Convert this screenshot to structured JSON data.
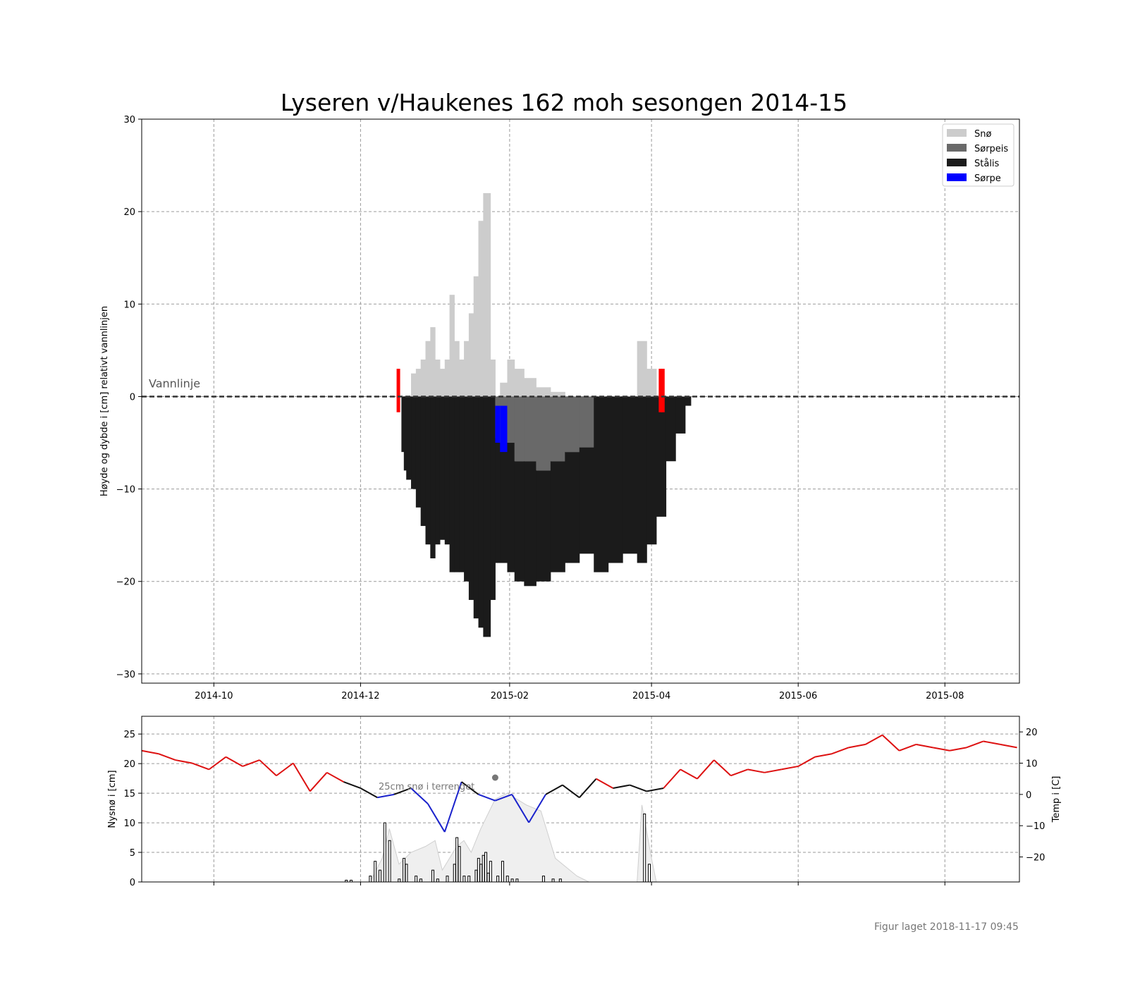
{
  "chart_data": [
    {
      "type": "area",
      "title": "Lyseren v/Haukenes 162 moh sesongen 2014-15",
      "ylabel": "Høyde og dybde i [cm] relativt vannlinjen",
      "xlabel": "",
      "ylim": [
        -31,
        30
      ],
      "yticks": [
        -30,
        -20,
        -10,
        0,
        10,
        20,
        30
      ],
      "xticks": [
        "2014-10",
        "2014-12",
        "2015-02",
        "2015-04",
        "2015-06",
        "2015-08"
      ],
      "xlim": [
        "2014-09-01",
        "2015-09-01"
      ],
      "grid": true,
      "waterline": {
        "label": "Vannlinje",
        "value": 0
      },
      "legend": {
        "placement": "top-right",
        "entries": [
          {
            "label": "Snø",
            "color": "#cccccc"
          },
          {
            "label": "Sørpeis",
            "color": "#696969"
          },
          {
            "label": "Stålis",
            "color": "#1b1b1b"
          },
          {
            "label": "Sørpe",
            "color": "#0000ff"
          }
        ]
      },
      "ice_steps": [
        {
          "date": "2014-12-18",
          "snow": 0,
          "slush_ice": 0,
          "black_ice": 6
        },
        {
          "date": "2014-12-19",
          "snow": 0,
          "slush_ice": 0,
          "black_ice": 8
        },
        {
          "date": "2014-12-20",
          "snow": 0,
          "slush_ice": 0,
          "black_ice": 9
        },
        {
          "date": "2014-12-22",
          "snow": 2.5,
          "slush_ice": 0,
          "black_ice": 10
        },
        {
          "date": "2014-12-24",
          "snow": 3,
          "slush_ice": 0,
          "black_ice": 12
        },
        {
          "date": "2014-12-26",
          "snow": 4,
          "slush_ice": 0,
          "black_ice": 14
        },
        {
          "date": "2014-12-28",
          "snow": 6,
          "slush_ice": 0,
          "black_ice": 16
        },
        {
          "date": "2014-12-30",
          "snow": 7.5,
          "slush_ice": 0,
          "black_ice": 17.5
        },
        {
          "date": "2015-01-01",
          "snow": 4,
          "slush_ice": 0,
          "black_ice": 16
        },
        {
          "date": "2015-01-03",
          "snow": 3,
          "slush_ice": 0,
          "black_ice": 15.5
        },
        {
          "date": "2015-01-05",
          "snow": 4,
          "slush_ice": 0,
          "black_ice": 16
        },
        {
          "date": "2015-01-07",
          "snow": 11,
          "slush_ice": 0,
          "black_ice": 19
        },
        {
          "date": "2015-01-09",
          "snow": 6,
          "slush_ice": 0,
          "black_ice": 19
        },
        {
          "date": "2015-01-11",
          "snow": 4,
          "slush_ice": 0,
          "black_ice": 19
        },
        {
          "date": "2015-01-13",
          "snow": 6,
          "slush_ice": 0,
          "black_ice": 20
        },
        {
          "date": "2015-01-15",
          "snow": 9,
          "slush_ice": 0,
          "black_ice": 22
        },
        {
          "date": "2015-01-17",
          "snow": 13,
          "slush_ice": 0,
          "black_ice": 24
        },
        {
          "date": "2015-01-19",
          "snow": 19,
          "slush_ice": 0,
          "black_ice": 25
        },
        {
          "date": "2015-01-21",
          "snow": 22,
          "slush_ice": 0,
          "black_ice": 26
        },
        {
          "date": "2015-01-24",
          "snow": 4,
          "slush_ice": 0,
          "black_ice": 22
        },
        {
          "date": "2015-01-26",
          "snow": 0,
          "slush_ice": 4.5,
          "black_ice": 18,
          "slush": 4
        },
        {
          "date": "2015-01-28",
          "snow": 1.5,
          "slush_ice": 5,
          "black_ice": 18,
          "slush": 5
        },
        {
          "date": "2015-01-31",
          "snow": 4,
          "slush_ice": 5,
          "black_ice": 19
        },
        {
          "date": "2015-02-03",
          "snow": 3,
          "slush_ice": 7,
          "black_ice": 20
        },
        {
          "date": "2015-02-07",
          "snow": 2,
          "slush_ice": 7,
          "black_ice": 20.5
        },
        {
          "date": "2015-02-12",
          "snow": 1,
          "slush_ice": 8,
          "black_ice": 20
        },
        {
          "date": "2015-02-18",
          "snow": 0.5,
          "slush_ice": 7,
          "black_ice": 19
        },
        {
          "date": "2015-02-24",
          "snow": 0,
          "slush_ice": 6,
          "black_ice": 18
        },
        {
          "date": "2015-03-02",
          "snow": 0,
          "slush_ice": 5.5,
          "black_ice": 17
        },
        {
          "date": "2015-03-08",
          "snow": 0,
          "slush_ice": 0,
          "black_ice": 19
        },
        {
          "date": "2015-03-14",
          "snow": 0,
          "slush_ice": 0,
          "black_ice": 18
        },
        {
          "date": "2015-03-20",
          "snow": 0,
          "slush_ice": 0,
          "black_ice": 17
        },
        {
          "date": "2015-03-26",
          "snow": 6,
          "slush_ice": 0,
          "black_ice": 18
        },
        {
          "date": "2015-03-30",
          "snow": 3,
          "slush_ice": 0,
          "black_ice": 16
        },
        {
          "date": "2015-04-03",
          "snow": 0,
          "slush_ice": 0,
          "black_ice": 13
        },
        {
          "date": "2015-04-07",
          "snow": 0,
          "slush_ice": 0,
          "black_ice": 7
        },
        {
          "date": "2015-04-11",
          "snow": 0,
          "slush_ice": 0,
          "black_ice": 4
        },
        {
          "date": "2015-04-15",
          "snow": 0,
          "slush_ice": 0,
          "black_ice": 1
        }
      ],
      "markers": [
        {
          "date": "2014-12-16",
          "color": "#ff0000"
        },
        {
          "date": "2015-04-04",
          "color": "#ff0000"
        },
        {
          "date": "2015-04-05",
          "color": "#ff0000"
        }
      ]
    },
    {
      "type": "line",
      "ylabel": "Nysnø i [cm]",
      "ylim": [
        0,
        28
      ],
      "yticks": [
        0,
        5,
        10,
        15,
        20,
        25
      ],
      "y2label": "Temp i [C]",
      "y2lim": [
        -28,
        25
      ],
      "y2ticks": [
        -20,
        -10,
        0,
        10,
        20
      ],
      "annotation": "25cm snø i terrenget",
      "annotation_date": "2015-01-26",
      "temperature_series": [
        {
          "date": "2014-09-01",
          "value": 14
        },
        {
          "date": "2014-09-08",
          "value": 13
        },
        {
          "date": "2014-09-15",
          "value": 11
        },
        {
          "date": "2014-09-22",
          "value": 10
        },
        {
          "date": "2014-09-29",
          "value": 8
        },
        {
          "date": "2014-10-06",
          "value": 12
        },
        {
          "date": "2014-10-13",
          "value": 9
        },
        {
          "date": "2014-10-20",
          "value": 11
        },
        {
          "date": "2014-10-27",
          "value": 6
        },
        {
          "date": "2014-11-03",
          "value": 10
        },
        {
          "date": "2014-11-10",
          "value": 1
        },
        {
          "date": "2014-11-17",
          "value": 7
        },
        {
          "date": "2014-11-24",
          "value": 4
        },
        {
          "date": "2014-12-01",
          "value": 2
        },
        {
          "date": "2014-12-08",
          "value": -1
        },
        {
          "date": "2014-12-15",
          "value": 0
        },
        {
          "date": "2014-12-22",
          "value": 2
        },
        {
          "date": "2014-12-29",
          "value": -3
        },
        {
          "date": "2015-01-05",
          "value": -12
        },
        {
          "date": "2015-01-12",
          "value": 4
        },
        {
          "date": "2015-01-19",
          "value": 0
        },
        {
          "date": "2015-01-26",
          "value": -2
        },
        {
          "date": "2015-02-02",
          "value": 0
        },
        {
          "date": "2015-02-09",
          "value": -9
        },
        {
          "date": "2015-02-16",
          "value": 0
        },
        {
          "date": "2015-02-23",
          "value": 3
        },
        {
          "date": "2015-03-02",
          "value": -1
        },
        {
          "date": "2015-03-09",
          "value": 5
        },
        {
          "date": "2015-03-16",
          "value": 2
        },
        {
          "date": "2015-03-23",
          "value": 3
        },
        {
          "date": "2015-03-30",
          "value": 1
        },
        {
          "date": "2015-04-06",
          "value": 2
        },
        {
          "date": "2015-04-13",
          "value": 8
        },
        {
          "date": "2015-04-20",
          "value": 5
        },
        {
          "date": "2015-04-27",
          "value": 11
        },
        {
          "date": "2015-05-04",
          "value": 6
        },
        {
          "date": "2015-05-11",
          "value": 8
        },
        {
          "date": "2015-05-18",
          "value": 7
        },
        {
          "date": "2015-05-25",
          "value": 8
        },
        {
          "date": "2015-06-01",
          "value": 9
        },
        {
          "date": "2015-06-08",
          "value": 12
        },
        {
          "date": "2015-06-15",
          "value": 13
        },
        {
          "date": "2015-06-22",
          "value": 15
        },
        {
          "date": "2015-06-29",
          "value": 16
        },
        {
          "date": "2015-07-06",
          "value": 19
        },
        {
          "date": "2015-07-13",
          "value": 14
        },
        {
          "date": "2015-07-20",
          "value": 16
        },
        {
          "date": "2015-07-27",
          "value": 15
        },
        {
          "date": "2015-08-03",
          "value": 14
        },
        {
          "date": "2015-08-10",
          "value": 15
        },
        {
          "date": "2015-08-17",
          "value": 17
        },
        {
          "date": "2015-08-24",
          "value": 16
        },
        {
          "date": "2015-08-31",
          "value": 15
        }
      ],
      "snow_depth_area": [
        {
          "date": "2014-12-05",
          "value": 0
        },
        {
          "date": "2014-12-10",
          "value": 4
        },
        {
          "date": "2014-12-13",
          "value": 9
        },
        {
          "date": "2014-12-17",
          "value": 3
        },
        {
          "date": "2014-12-22",
          "value": 5
        },
        {
          "date": "2014-12-28",
          "value": 6
        },
        {
          "date": "2015-01-01",
          "value": 7
        },
        {
          "date": "2015-01-04",
          "value": 2
        },
        {
          "date": "2015-01-10",
          "value": 6
        },
        {
          "date": "2015-01-13",
          "value": 7
        },
        {
          "date": "2015-01-16",
          "value": 5
        },
        {
          "date": "2015-01-20",
          "value": 9
        },
        {
          "date": "2015-01-26",
          "value": 14
        },
        {
          "date": "2015-01-31",
          "value": 15
        },
        {
          "date": "2015-02-08",
          "value": 13
        },
        {
          "date": "2015-02-14",
          "value": 12
        },
        {
          "date": "2015-02-20",
          "value": 4
        },
        {
          "date": "2015-03-01",
          "value": 1
        },
        {
          "date": "2015-03-06",
          "value": 0
        },
        {
          "date": "2015-03-26",
          "value": 0
        },
        {
          "date": "2015-03-28",
          "value": 13
        },
        {
          "date": "2015-04-01",
          "value": 4
        },
        {
          "date": "2015-04-03",
          "value": 0
        }
      ],
      "new_snow_bars": [
        {
          "date": "2014-11-25",
          "value": 0.3
        },
        {
          "date": "2014-11-27",
          "value": 0.3
        },
        {
          "date": "2014-12-05",
          "value": 1
        },
        {
          "date": "2014-12-07",
          "value": 3.5
        },
        {
          "date": "2014-12-09",
          "value": 2
        },
        {
          "date": "2014-12-11",
          "value": 10
        },
        {
          "date": "2014-12-13",
          "value": 7
        },
        {
          "date": "2014-12-17",
          "value": 0.5
        },
        {
          "date": "2014-12-19",
          "value": 4
        },
        {
          "date": "2014-12-20",
          "value": 3
        },
        {
          "date": "2014-12-24",
          "value": 1
        },
        {
          "date": "2014-12-26",
          "value": 0.5
        },
        {
          "date": "2014-12-31",
          "value": 2
        },
        {
          "date": "2015-01-02",
          "value": 0.5
        },
        {
          "date": "2015-01-06",
          "value": 1
        },
        {
          "date": "2015-01-09",
          "value": 3
        },
        {
          "date": "2015-01-10",
          "value": 7.5
        },
        {
          "date": "2015-01-11",
          "value": 6
        },
        {
          "date": "2015-01-13",
          "value": 1
        },
        {
          "date": "2015-01-15",
          "value": 1
        },
        {
          "date": "2015-01-18",
          "value": 2
        },
        {
          "date": "2015-01-19",
          "value": 4
        },
        {
          "date": "2015-01-20",
          "value": 3
        },
        {
          "date": "2015-01-21",
          "value": 4.5
        },
        {
          "date": "2015-01-22",
          "value": 5
        },
        {
          "date": "2015-01-23",
          "value": 1.5
        },
        {
          "date": "2015-01-24",
          "value": 3.5
        },
        {
          "date": "2015-01-27",
          "value": 1
        },
        {
          "date": "2015-01-29",
          "value": 3.5
        },
        {
          "date": "2015-01-31",
          "value": 1
        },
        {
          "date": "2015-02-02",
          "value": 0.5
        },
        {
          "date": "2015-02-04",
          "value": 0.5
        },
        {
          "date": "2015-02-15",
          "value": 1
        },
        {
          "date": "2015-02-19",
          "value": 0.5
        },
        {
          "date": "2015-02-22",
          "value": 0.5
        },
        {
          "date": "2015-03-29",
          "value": 11.5
        },
        {
          "date": "2015-03-31",
          "value": 3
        }
      ]
    }
  ],
  "footer": "Figur laget 2018-11-17 09:45"
}
